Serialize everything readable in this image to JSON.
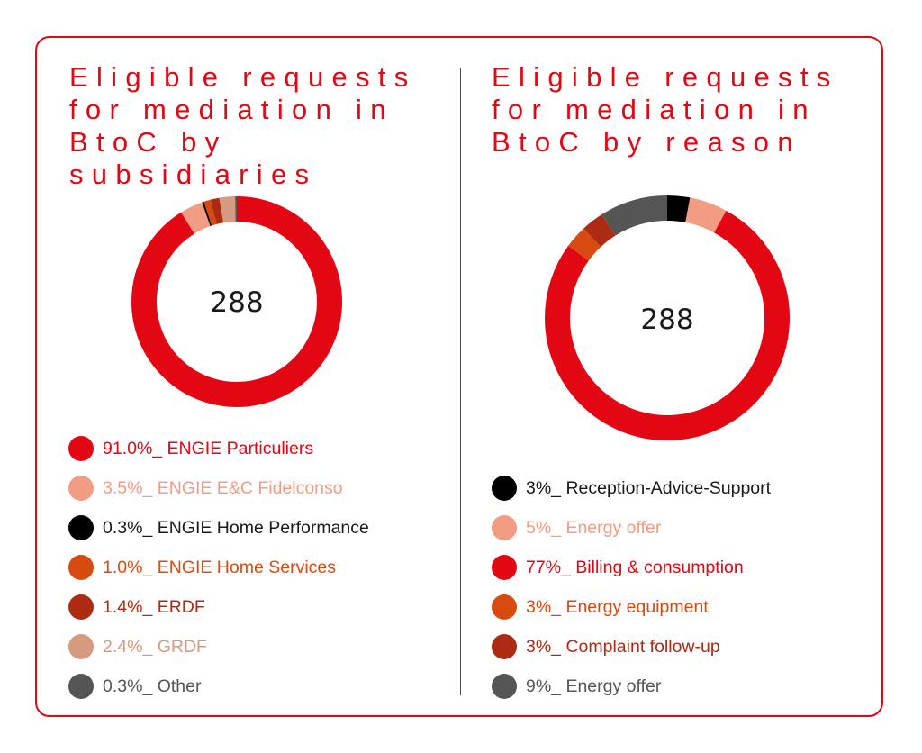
{
  "charts": {
    "left": {
      "title": "Eligible requests\nfor mediation in\nBtoC by subsidiaries",
      "center_label": "288"
    },
    "right": {
      "title": "Eligible requests\nfor mediation in\nBtoC by reason",
      "center_label": "288"
    }
  },
  "chart_data": [
    {
      "type": "pie",
      "donut": true,
      "title": "Eligible requests for mediation in BtoC by subsidiaries",
      "total": 288,
      "slices": [
        {
          "label": "91.0%_ ENGIE Particuliers",
          "value": 91.0,
          "color": "#e30613",
          "text_color": "#e30613"
        },
        {
          "label": "3.5%_ ENGIE E&C Fidelconso",
          "value": 3.5,
          "color": "#f39c84",
          "text_color": "#f39c84"
        },
        {
          "label": "0.3%_ ENGIE Home Performance",
          "value": 0.3,
          "color": "#000000",
          "text_color": "#1a1a1a"
        },
        {
          "label": "1.0%_ ENGIE Home Services",
          "value": 1.0,
          "color": "#d84b10",
          "text_color": "#d84b10"
        },
        {
          "label": "1.4%_ ERDF",
          "value": 1.4,
          "color": "#ad2b12",
          "text_color": "#ad2b12"
        },
        {
          "label": "2.4%_ GRDF",
          "value": 2.4,
          "color": "#d69a80",
          "text_color": "#d69a80"
        },
        {
          "label": "0.3%_ Other",
          "value": 0.3,
          "color": "#555555",
          "text_color": "#555555"
        }
      ],
      "draw_order": [
        0,
        1,
        2,
        3,
        4,
        5,
        6
      ]
    },
    {
      "type": "pie",
      "donut": true,
      "title": "Eligible requests for mediation in BtoC by reason",
      "total": 288,
      "slices": [
        {
          "label": "3%_ Reception-Advice-Support",
          "value": 3,
          "color": "#000000",
          "text_color": "#1a1a1a"
        },
        {
          "label": "5%_ Energy offer",
          "value": 5,
          "color": "#f39c84",
          "text_color": "#f39c84"
        },
        {
          "label": "77%_ Billing & consumption",
          "value": 77,
          "color": "#e30613",
          "text_color": "#e30613"
        },
        {
          "label": "3%_ Energy equipment",
          "value": 3,
          "color": "#d84b10",
          "text_color": "#d84b10"
        },
        {
          "label": "3%_ Complaint follow-up",
          "value": 3,
          "color": "#ad2b12",
          "text_color": "#ad2b12"
        },
        {
          "label": "9%_ Energy offer",
          "value": 9,
          "color": "#555555",
          "text_color": "#555555"
        }
      ],
      "draw_order": [
        0,
        1,
        2,
        3,
        4,
        5
      ]
    }
  ]
}
